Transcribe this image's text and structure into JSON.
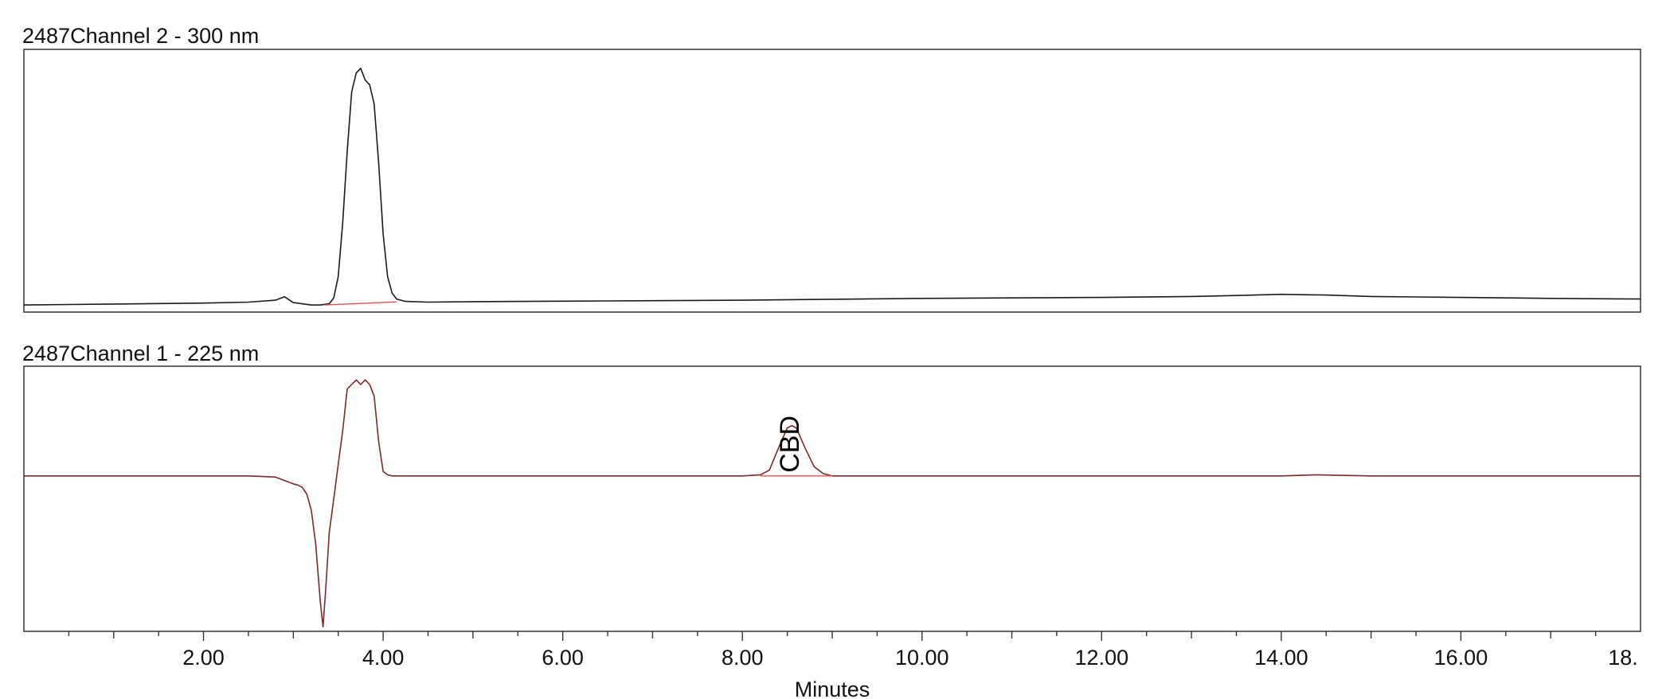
{
  "chart_data": {
    "type": "line",
    "xlabel": "Minutes",
    "xlim": [
      0,
      18
    ],
    "x_ticks": [
      "2.00",
      "4.00",
      "6.00",
      "8.00",
      "10.00",
      "12.00",
      "14.00",
      "16.00",
      "18."
    ],
    "x_tick_values": [
      2,
      4,
      6,
      8,
      10,
      12,
      14,
      16,
      18
    ],
    "panels": [
      {
        "title": "2487Channel 2 - 300 nm",
        "trace_color": "#1a1a1a",
        "baseline_color": "#e05050",
        "ylim": [
          -0.03,
          1.08
        ],
        "x": [
          0,
          0.5,
          1.0,
          1.5,
          2.0,
          2.5,
          2.8,
          2.9,
          3.0,
          3.1,
          3.2,
          3.3,
          3.4,
          3.45,
          3.5,
          3.55,
          3.6,
          3.65,
          3.7,
          3.75,
          3.8,
          3.85,
          3.9,
          3.95,
          4.0,
          4.05,
          4.1,
          4.15,
          4.25,
          4.5,
          5.0,
          6.0,
          7.0,
          8.0,
          9.0,
          10.0,
          11.0,
          12.0,
          13.0,
          13.5,
          14.0,
          14.5,
          15.0,
          16.0,
          17.0,
          18.0
        ],
        "y": [
          0.0,
          0.002,
          0.004,
          0.006,
          0.008,
          0.012,
          0.02,
          0.035,
          0.01,
          0.005,
          0.0,
          0.0,
          0.005,
          0.03,
          0.12,
          0.35,
          0.65,
          0.9,
          0.98,
          1.0,
          0.95,
          0.93,
          0.85,
          0.6,
          0.3,
          0.12,
          0.05,
          0.025,
          0.015,
          0.012,
          0.014,
          0.016,
          0.018,
          0.02,
          0.024,
          0.028,
          0.03,
          0.032,
          0.036,
          0.04,
          0.045,
          0.042,
          0.036,
          0.032,
          0.028,
          0.025
        ],
        "baseline": {
          "x": [
            3.35,
            4.15
          ],
          "y": [
            0.0,
            0.013
          ]
        },
        "peak_label": null
      },
      {
        "title": "2487Channel 1 - 225 nm",
        "trace_color": "#7a2a2a",
        "baseline_color": "#e05050",
        "ylim": [
          -0.68,
          0.48
        ],
        "x": [
          0,
          0.5,
          1.0,
          1.5,
          2.0,
          2.5,
          2.8,
          2.9,
          3.0,
          3.05,
          3.1,
          3.15,
          3.2,
          3.25,
          3.3,
          3.33,
          3.36,
          3.4,
          3.45,
          3.5,
          3.55,
          3.6,
          3.65,
          3.7,
          3.75,
          3.8,
          3.85,
          3.9,
          3.95,
          4.0,
          4.05,
          4.1,
          4.2,
          4.5,
          5.0,
          6.0,
          7.0,
          8.0,
          8.2,
          8.3,
          8.4,
          8.5,
          8.55,
          8.6,
          8.7,
          8.8,
          8.9,
          9.0,
          9.2,
          10.0,
          12.0,
          14.0,
          14.4,
          15.0,
          16.0,
          17.0,
          18.0
        ],
        "y": [
          0.0,
          0.0,
          0.0,
          0.0,
          0.0,
          0.0,
          -0.005,
          -0.02,
          -0.035,
          -0.04,
          -0.05,
          -0.08,
          -0.15,
          -0.3,
          -0.55,
          -0.66,
          -0.5,
          -0.25,
          -0.1,
          0.05,
          0.2,
          0.38,
          0.4,
          0.42,
          0.4,
          0.42,
          0.4,
          0.35,
          0.15,
          0.02,
          0.005,
          0.0,
          0.0,
          0.0,
          0.0,
          0.0,
          0.0,
          0.0,
          0.005,
          0.025,
          0.12,
          0.21,
          0.22,
          0.21,
          0.12,
          0.04,
          0.01,
          0.0,
          0.0,
          0.0,
          0.0,
          0.0,
          0.005,
          0.0,
          0.0,
          0.0,
          0.0
        ],
        "baseline": {
          "x": [
            8.2,
            9.0
          ],
          "y": [
            0.0,
            0.0
          ]
        },
        "peak_label": {
          "text": "CBD",
          "x": 8.55
        }
      }
    ]
  }
}
